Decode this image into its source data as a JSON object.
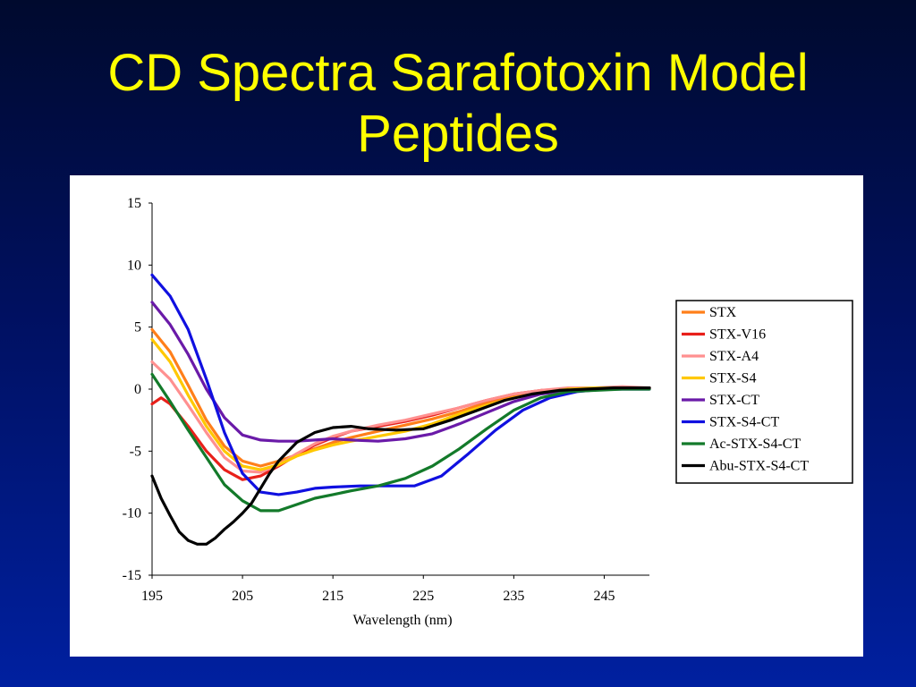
{
  "slide": {
    "title_line1": "CD Spectra Sarafotoxin Model",
    "title_line2": "Peptides"
  },
  "colors": {
    "background": "#001060",
    "title": "#ffff00",
    "plot_background": "#ffffff"
  },
  "chart_data": {
    "type": "line",
    "title": "",
    "xlabel": "Wavelength (nm)",
    "ylabel": "",
    "xlim": [
      195,
      250
    ],
    "ylim": [
      -15,
      15
    ],
    "xticks": [
      195,
      205,
      215,
      225,
      235,
      245
    ],
    "yticks": [
      15,
      10,
      5,
      0,
      -5,
      -10,
      -15
    ],
    "grid": false,
    "legend_position": "right",
    "series": [
      {
        "name": "STX",
        "color": "#ff7f1a",
        "x": [
          195,
          197,
          199,
          201,
          203,
          205,
          207,
          209,
          211,
          213,
          215,
          217,
          220,
          223,
          226,
          229,
          232,
          235,
          238,
          241,
          244,
          247,
          250
        ],
        "y": [
          4.8,
          3.0,
          0.3,
          -2.5,
          -4.6,
          -5.8,
          -6.2,
          -5.8,
          -5.3,
          -4.8,
          -4.3,
          -3.9,
          -3.4,
          -2.9,
          -2.4,
          -1.8,
          -1.1,
          -0.6,
          -0.2,
          0,
          0.1,
          0.1,
          0.1
        ]
      },
      {
        "name": "STX-V16",
        "color": "#e8201a",
        "x": [
          195,
          196,
          197,
          199,
          201,
          203,
          205,
          207,
          209,
          211,
          213,
          215,
          217,
          220,
          223,
          226,
          229,
          232,
          235,
          238,
          241,
          244,
          247,
          250
        ],
        "y": [
          -1.2,
          -0.7,
          -1.2,
          -3.0,
          -5.0,
          -6.5,
          -7.3,
          -7.0,
          -6.2,
          -5.3,
          -4.5,
          -3.9,
          -3.4,
          -3.0,
          -2.6,
          -2.1,
          -1.5,
          -0.9,
          -0.4,
          -0.1,
          0,
          0.1,
          0.1,
          0.1
        ]
      },
      {
        "name": "STX-A4",
        "color": "#ff9090",
        "x": [
          195,
          197,
          199,
          201,
          203,
          205,
          207,
          209,
          211,
          213,
          215,
          217,
          220,
          223,
          226,
          229,
          232,
          235,
          238,
          241,
          244,
          247,
          250
        ],
        "y": [
          2.2,
          0.8,
          -1.3,
          -3.5,
          -5.5,
          -6.6,
          -6.7,
          -6.1,
          -5.2,
          -4.4,
          -3.8,
          -3.4,
          -2.9,
          -2.5,
          -2.0,
          -1.5,
          -0.9,
          -0.4,
          -0.1,
          0.1,
          0.1,
          0.2,
          0.1
        ]
      },
      {
        "name": "STX-S4",
        "color": "#ffc800",
        "x": [
          195,
          197,
          199,
          201,
          203,
          205,
          207,
          209,
          211,
          213,
          215,
          217,
          220,
          223,
          226,
          229,
          232,
          235,
          238,
          241,
          244,
          247,
          250
        ],
        "y": [
          4.0,
          2.2,
          -0.5,
          -3.0,
          -5.0,
          -6.2,
          -6.5,
          -6.1,
          -5.4,
          -4.9,
          -4.5,
          -4.2,
          -3.8,
          -3.4,
          -2.8,
          -2.0,
          -1.3,
          -0.7,
          -0.3,
          0,
          0.1,
          0.1,
          0.1
        ]
      },
      {
        "name": "STX-CT",
        "color": "#6a1aa8",
        "x": [
          195,
          197,
          199,
          201,
          203,
          205,
          207,
          209,
          211,
          213,
          215,
          217,
          220,
          223,
          226,
          229,
          232,
          235,
          238,
          241,
          244,
          247,
          250
        ],
        "y": [
          7.0,
          5.2,
          2.8,
          0,
          -2.3,
          -3.7,
          -4.1,
          -4.2,
          -4.2,
          -4.1,
          -4.0,
          -4.1,
          -4.2,
          -4.0,
          -3.6,
          -2.8,
          -1.9,
          -1.0,
          -0.4,
          -0.1,
          0,
          0.1,
          0.1
        ]
      },
      {
        "name": "STX-S4-CT",
        "color": "#1010e0",
        "x": [
          195,
          197,
          199,
          201,
          203,
          205,
          207,
          209,
          211,
          213,
          215,
          218,
          221,
          224,
          227,
          230,
          233,
          236,
          239,
          242,
          245,
          248,
          250
        ],
        "y": [
          9.2,
          7.5,
          4.8,
          0.8,
          -3.5,
          -6.8,
          -8.3,
          -8.5,
          -8.3,
          -8.0,
          -7.9,
          -7.8,
          -7.8,
          -7.8,
          -7.0,
          -5.2,
          -3.3,
          -1.7,
          -0.7,
          -0.2,
          0,
          0,
          0
        ]
      },
      {
        "name": "Ac-STX-S4-CT",
        "color": "#137a2a",
        "x": [
          195,
          197,
          199,
          201,
          203,
          205,
          207,
          209,
          211,
          213,
          215,
          217,
          220,
          223,
          226,
          229,
          232,
          235,
          238,
          241,
          244,
          247,
          250
        ],
        "y": [
          1.2,
          -1.0,
          -3.3,
          -5.5,
          -7.7,
          -9.0,
          -9.8,
          -9.8,
          -9.3,
          -8.8,
          -8.5,
          -8.2,
          -7.8,
          -7.2,
          -6.2,
          -4.8,
          -3.2,
          -1.7,
          -0.7,
          -0.2,
          -0.1,
          0,
          0
        ]
      },
      {
        "name": "Abu-STX-S4-CT",
        "color": "#000000",
        "x": [
          195,
          196,
          197,
          198,
          199,
          200,
          201,
          202,
          203,
          204,
          205,
          206,
          207,
          208,
          209,
          211,
          213,
          215,
          217,
          219,
          222,
          225,
          228,
          231,
          234,
          237,
          240,
          243,
          246,
          250
        ],
        "y": [
          -7.0,
          -8.8,
          -10.2,
          -11.5,
          -12.2,
          -12.5,
          -12.5,
          -12.0,
          -11.3,
          -10.7,
          -10.0,
          -9.2,
          -8.0,
          -6.8,
          -5.8,
          -4.3,
          -3.5,
          -3.1,
          -3.0,
          -3.2,
          -3.3,
          -3.2,
          -2.5,
          -1.7,
          -0.9,
          -0.4,
          -0.1,
          0,
          0.1,
          0.1
        ]
      }
    ]
  }
}
